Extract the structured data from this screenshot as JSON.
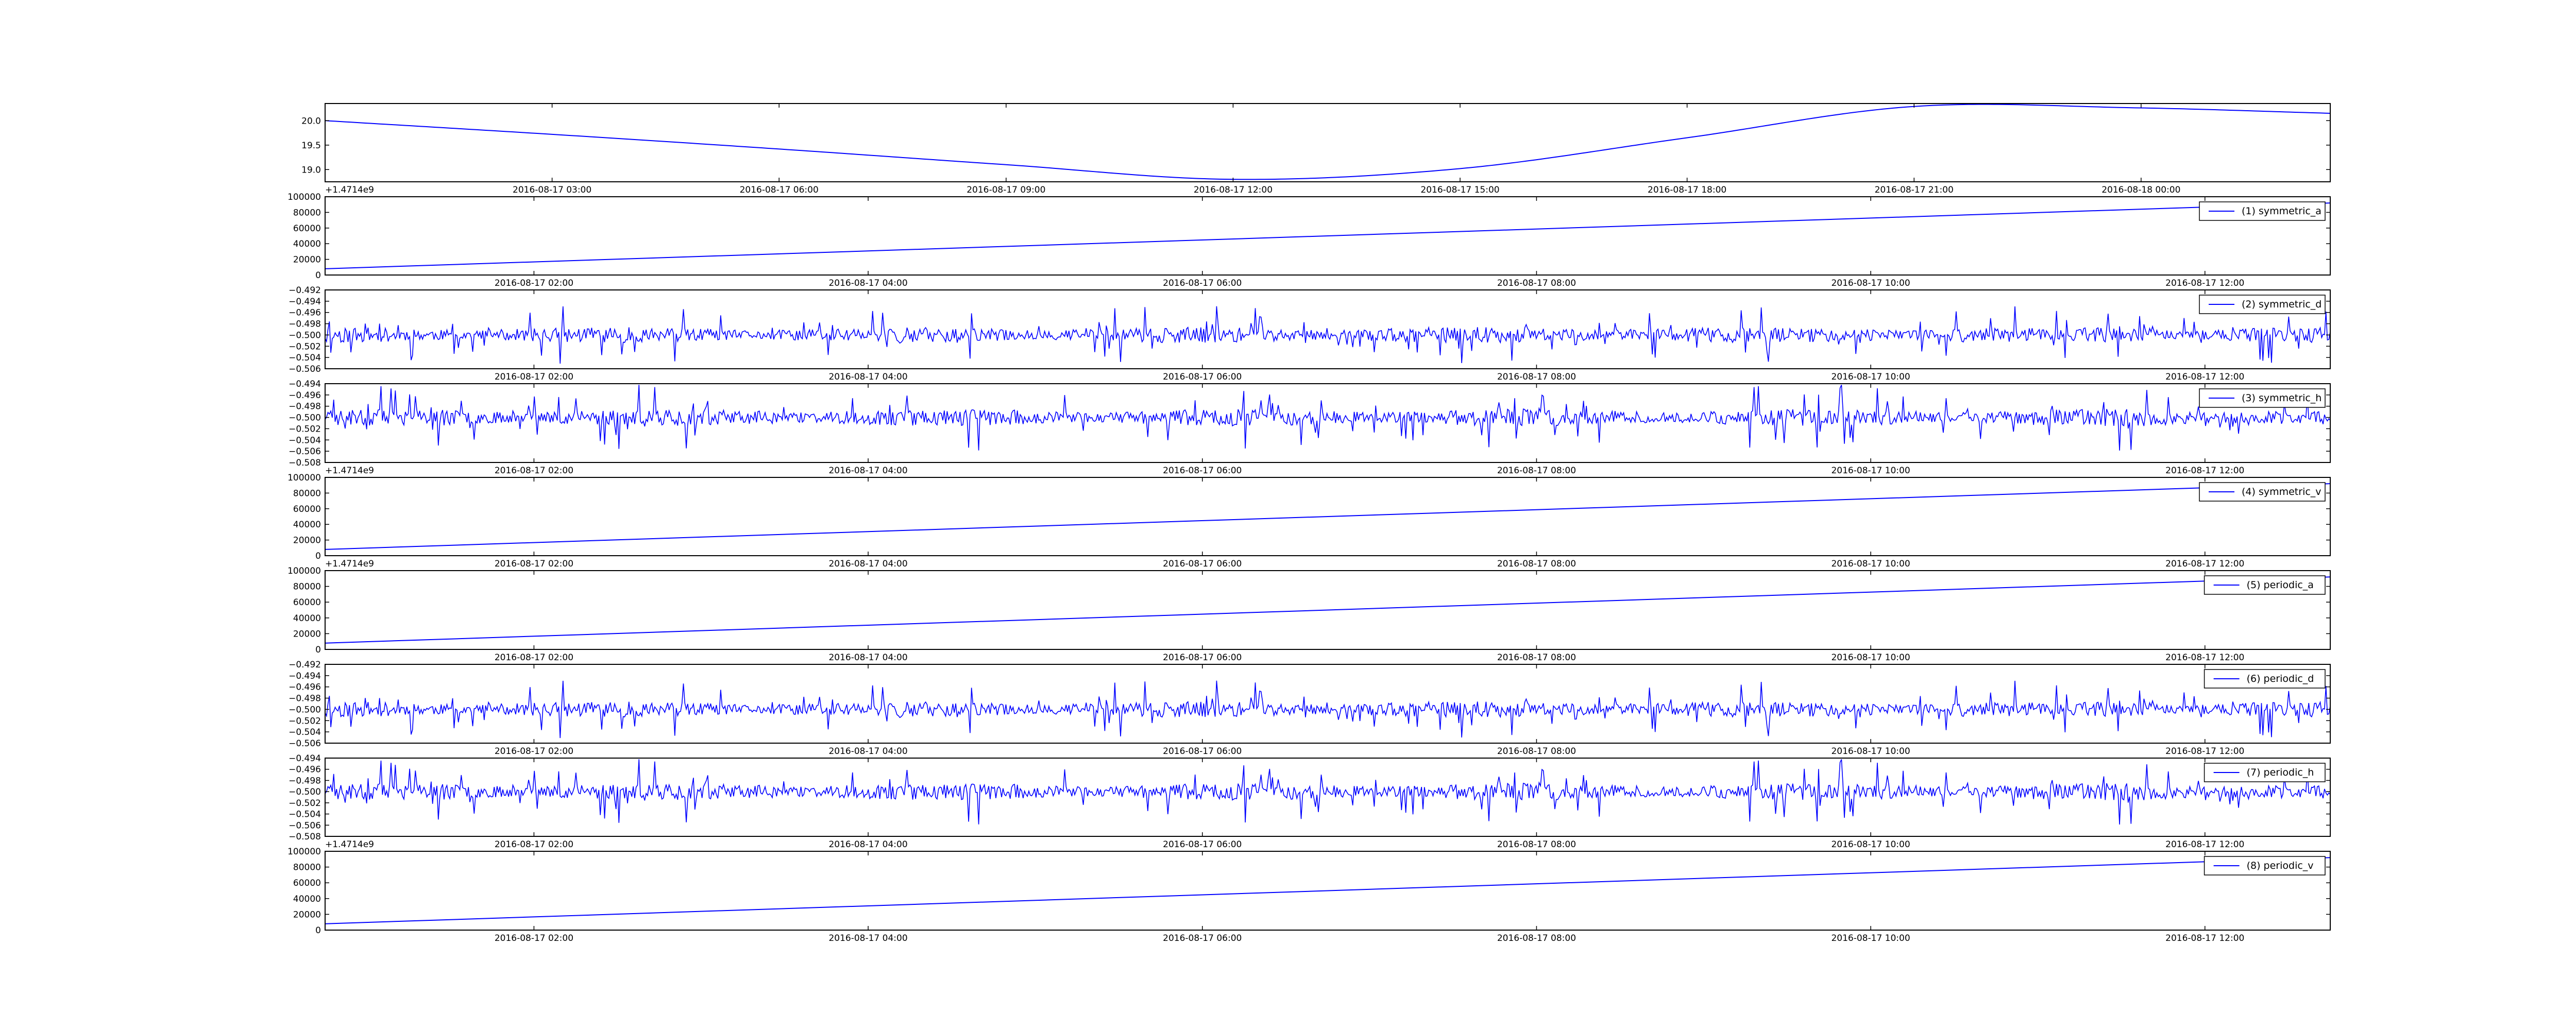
{
  "figure": {
    "line_color": "#0000ff",
    "axes_color": "#000000",
    "background": "#ffffff"
  },
  "chart_data": [
    {
      "type": "line",
      "x_axis": "datetime",
      "x_range": [
        "2016-08-17 00:00",
        "2016-08-18 02:30"
      ],
      "x_ticks": [
        "2016-08-17 03:00",
        "2016-08-17 06:00",
        "2016-08-17 09:00",
        "2016-08-17 12:00",
        "2016-08-17 15:00",
        "2016-08-17 18:00",
        "2016-08-17 21:00",
        "2016-08-18 00:00"
      ],
      "ylim": [
        18.75,
        20.35
      ],
      "y_ticks": [
        "19.0",
        "19.5",
        "20.0"
      ],
      "offset_text": "+1.4714e9",
      "legend": null,
      "series": [
        {
          "shape": "sinusoid",
          "x": [
            "2016-08-17 00:00",
            "2016-08-17 03:00",
            "2016-08-17 06:00",
            "2016-08-17 09:00",
            "2016-08-17 12:00",
            "2016-08-17 15:00",
            "2016-08-17 18:00",
            "2016-08-17 21:00",
            "2016-08-18 00:00",
            "2016-08-18 02:30"
          ],
          "y": [
            20.0,
            19.72,
            19.42,
            19.1,
            18.8,
            19.02,
            19.65,
            20.29,
            20.26,
            20.15
          ]
        }
      ]
    },
    {
      "type": "line",
      "x_axis": "datetime",
      "x_range": [
        "2016-08-17 00:45",
        "2016-08-17 12:45"
      ],
      "x_ticks": [
        "2016-08-17 02:00",
        "2016-08-17 04:00",
        "2016-08-17 06:00",
        "2016-08-17 08:00",
        "2016-08-17 10:00",
        "2016-08-17 12:00"
      ],
      "ylim": [
        0,
        100000
      ],
      "y_ticks": [
        "0",
        "20000",
        "40000",
        "60000",
        "80000",
        "100000"
      ],
      "offset_text": "",
      "legend": "upper right",
      "series": [
        {
          "name": "(1) symmetric_a",
          "shape": "linear",
          "x": [
            "2016-08-17 00:45",
            "2016-08-17 12:45"
          ],
          "y": [
            8000,
            92000
          ]
        }
      ]
    },
    {
      "type": "line",
      "x_axis": "datetime",
      "x_range": [
        "2016-08-17 00:45",
        "2016-08-17 12:45"
      ],
      "x_ticks": [
        "2016-08-17 02:00",
        "2016-08-17 04:00",
        "2016-08-17 06:00",
        "2016-08-17 08:00",
        "2016-08-17 10:00",
        "2016-08-17 12:00"
      ],
      "ylim": [
        -0.506,
        -0.492
      ],
      "y_ticks": [
        "−0.506",
        "−0.504",
        "−0.502",
        "−0.500",
        "−0.498",
        "−0.496",
        "−0.494",
        "−0.492"
      ],
      "offset_text": "",
      "legend": "upper right",
      "series": [
        {
          "name": "(2) symmetric_d",
          "shape": "noise",
          "center": -0.5,
          "amplitude": 0.0055,
          "seed": 11,
          "points": 1400
        }
      ]
    },
    {
      "type": "line",
      "x_axis": "datetime",
      "x_range": [
        "2016-08-17 00:45",
        "2016-08-17 12:45"
      ],
      "x_ticks": [
        "2016-08-17 02:00",
        "2016-08-17 04:00",
        "2016-08-17 06:00",
        "2016-08-17 08:00",
        "2016-08-17 10:00",
        "2016-08-17 12:00"
      ],
      "ylim": [
        -0.508,
        -0.494
      ],
      "y_ticks": [
        "−0.508",
        "−0.506",
        "−0.504",
        "−0.502",
        "−0.500",
        "−0.498",
        "−0.496",
        "−0.494"
      ],
      "offset_text": "+1.4714e9",
      "legend": "upper right",
      "series": [
        {
          "name": "(3) symmetric_h",
          "shape": "noise",
          "center": -0.5,
          "amplitude": 0.006,
          "seed": 23,
          "points": 1400
        }
      ]
    },
    {
      "type": "line",
      "x_axis": "datetime",
      "x_range": [
        "2016-08-17 00:45",
        "2016-08-17 12:45"
      ],
      "x_ticks": [
        "2016-08-17 02:00",
        "2016-08-17 04:00",
        "2016-08-17 06:00",
        "2016-08-17 08:00",
        "2016-08-17 10:00",
        "2016-08-17 12:00"
      ],
      "ylim": [
        0,
        100000
      ],
      "y_ticks": [
        "0",
        "20000",
        "40000",
        "60000",
        "80000",
        "100000"
      ],
      "offset_text": "+1.4714e9",
      "legend": "upper right",
      "series": [
        {
          "name": "(4) symmetric_v",
          "shape": "linear",
          "x": [
            "2016-08-17 00:45",
            "2016-08-17 12:45"
          ],
          "y": [
            8000,
            92000
          ]
        }
      ]
    },
    {
      "type": "line",
      "x_axis": "datetime",
      "x_range": [
        "2016-08-17 00:45",
        "2016-08-17 12:45"
      ],
      "x_ticks": [
        "2016-08-17 02:00",
        "2016-08-17 04:00",
        "2016-08-17 06:00",
        "2016-08-17 08:00",
        "2016-08-17 10:00",
        "2016-08-17 12:00"
      ],
      "ylim": [
        0,
        100000
      ],
      "y_ticks": [
        "0",
        "20000",
        "40000",
        "60000",
        "80000",
        "100000"
      ],
      "offset_text": "",
      "legend": "upper right",
      "series": [
        {
          "name": "(5) periodic_a",
          "shape": "linear",
          "x": [
            "2016-08-17 00:45",
            "2016-08-17 12:45"
          ],
          "y": [
            8000,
            92000
          ]
        }
      ]
    },
    {
      "type": "line",
      "x_axis": "datetime",
      "x_range": [
        "2016-08-17 00:45",
        "2016-08-17 12:45"
      ],
      "x_ticks": [
        "2016-08-17 02:00",
        "2016-08-17 04:00",
        "2016-08-17 06:00",
        "2016-08-17 08:00",
        "2016-08-17 10:00",
        "2016-08-17 12:00"
      ],
      "ylim": [
        -0.506,
        -0.492
      ],
      "y_ticks": [
        "−0.506",
        "−0.504",
        "−0.502",
        "−0.500",
        "−0.498",
        "−0.496",
        "−0.494",
        "−0.492"
      ],
      "offset_text": "",
      "legend": "upper right",
      "series": [
        {
          "name": "(6) periodic_d",
          "shape": "noise",
          "center": -0.5,
          "amplitude": 0.0055,
          "seed": 11,
          "points": 1400
        }
      ]
    },
    {
      "type": "line",
      "x_axis": "datetime",
      "x_range": [
        "2016-08-17 00:45",
        "2016-08-17 12:45"
      ],
      "x_ticks": [
        "2016-08-17 02:00",
        "2016-08-17 04:00",
        "2016-08-17 06:00",
        "2016-08-17 08:00",
        "2016-08-17 10:00",
        "2016-08-17 12:00"
      ],
      "ylim": [
        -0.508,
        -0.494
      ],
      "y_ticks": [
        "−0.508",
        "−0.506",
        "−0.504",
        "−0.502",
        "−0.500",
        "−0.498",
        "−0.496",
        "−0.494"
      ],
      "offset_text": "+1.4714e9",
      "legend": "upper right",
      "series": [
        {
          "name": "(7) periodic_h",
          "shape": "noise",
          "center": -0.5,
          "amplitude": 0.006,
          "seed": 23,
          "points": 1400
        }
      ]
    },
    {
      "type": "line",
      "x_axis": "datetime",
      "x_range": [
        "2016-08-17 00:45",
        "2016-08-17 12:45"
      ],
      "x_ticks": [
        "2016-08-17 02:00",
        "2016-08-17 04:00",
        "2016-08-17 06:00",
        "2016-08-17 08:00",
        "2016-08-17 10:00",
        "2016-08-17 12:00"
      ],
      "ylim": [
        0,
        100000
      ],
      "y_ticks": [
        "0",
        "20000",
        "40000",
        "60000",
        "80000",
        "100000"
      ],
      "offset_text": "",
      "legend": "upper right",
      "series": [
        {
          "name": "(8) periodic_v",
          "shape": "linear",
          "x": [
            "2016-08-17 00:45",
            "2016-08-17 12:45"
          ],
          "y": [
            8000,
            92000
          ]
        }
      ]
    }
  ]
}
